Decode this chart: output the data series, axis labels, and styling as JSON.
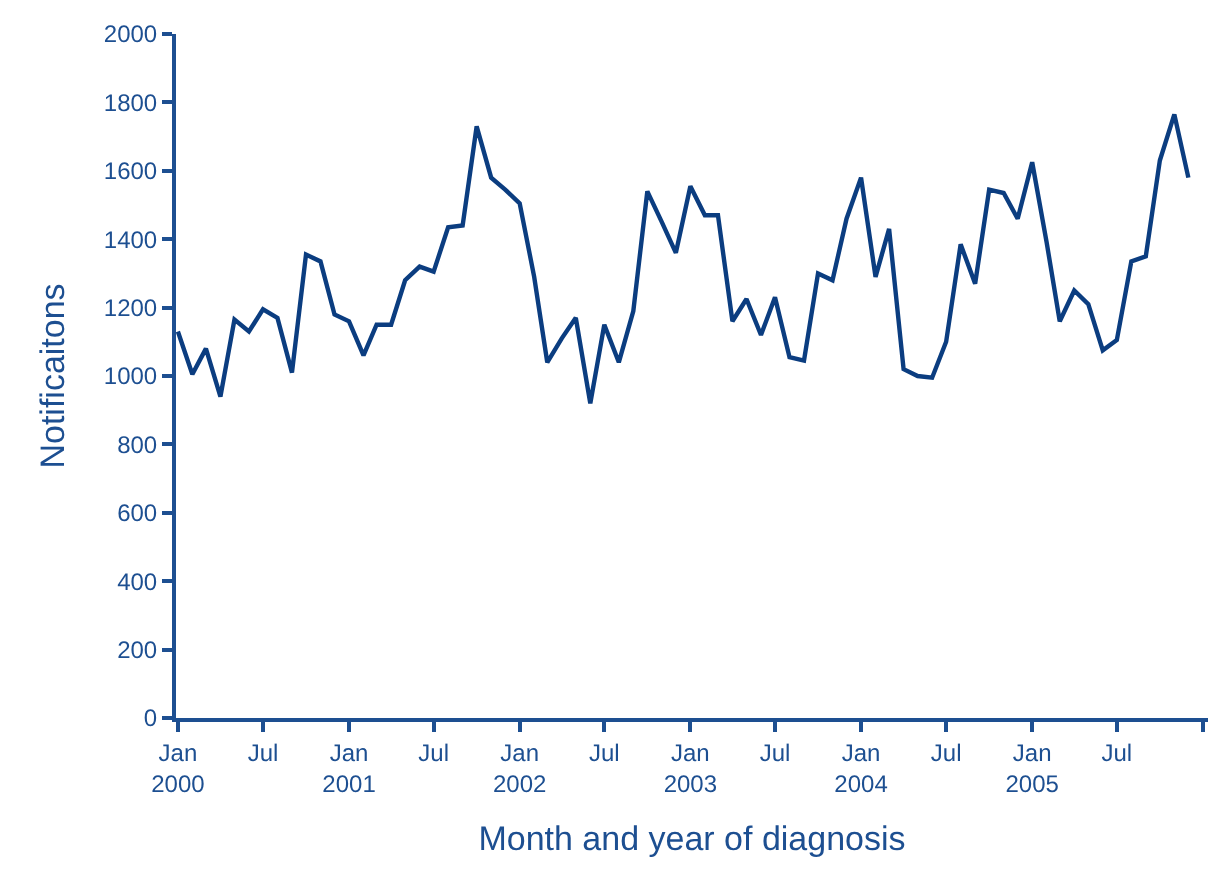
{
  "chart_data": {
    "type": "line",
    "xlabel": "Month and year of diagnosis",
    "ylabel": "Notificaitons",
    "x": [
      "2000-01",
      "2000-02",
      "2000-03",
      "2000-04",
      "2000-05",
      "2000-06",
      "2000-07",
      "2000-08",
      "2000-09",
      "2000-10",
      "2000-11",
      "2000-12",
      "2001-01",
      "2001-02",
      "2001-03",
      "2001-04",
      "2001-05",
      "2001-06",
      "2001-07",
      "2001-08",
      "2001-09",
      "2001-10",
      "2001-11",
      "2001-12",
      "2002-01",
      "2002-02",
      "2002-03",
      "2002-04",
      "2002-05",
      "2002-06",
      "2002-07",
      "2002-08",
      "2002-09",
      "2002-10",
      "2002-11",
      "2002-12",
      "2003-01",
      "2003-02",
      "2003-03",
      "2003-04",
      "2003-05",
      "2003-06",
      "2003-07",
      "2003-08",
      "2003-09",
      "2003-10",
      "2003-11",
      "2003-12",
      "2004-01",
      "2004-02",
      "2004-03",
      "2004-04",
      "2004-05",
      "2004-06",
      "2004-07",
      "2004-08",
      "2004-09",
      "2004-10",
      "2004-11",
      "2004-12",
      "2005-01",
      "2005-02",
      "2005-03",
      "2005-04",
      "2005-05",
      "2005-06",
      "2005-07",
      "2005-08",
      "2005-09",
      "2005-10",
      "2005-11",
      "2005-12"
    ],
    "series": [
      {
        "color": "#0b3d80",
        "values": [
          1130,
          1005,
          1080,
          940,
          1165,
          1130,
          1195,
          1170,
          1010,
          1355,
          1335,
          1180,
          1160,
          1060,
          1150,
          1150,
          1280,
          1320,
          1305,
          1435,
          1440,
          1730,
          1580,
          1545,
          1505,
          1290,
          1040,
          1110,
          1170,
          920,
          1150,
          1040,
          1190,
          1540,
          1450,
          1360,
          1555,
          1470,
          1470,
          1160,
          1225,
          1120,
          1230,
          1055,
          1045,
          1300,
          1280,
          1460,
          1580,
          1290,
          1430,
          1020,
          1000,
          995,
          1100,
          1385,
          1270,
          1545,
          1535,
          1460,
          1625,
          1390,
          1160,
          1250,
          1210,
          1075,
          1105,
          1335,
          1350,
          1630,
          1765,
          1580
        ]
      }
    ],
    "xlim": [
      "1999-12-28",
      "2006-01-12"
    ],
    "xticks": [
      {
        "value": "2000-01",
        "label": "Jan\n2000"
      },
      {
        "value": "2000-07",
        "label": "Jul"
      },
      {
        "value": "2001-01",
        "label": "Jan\n2001"
      },
      {
        "value": "2001-07",
        "label": "Jul"
      },
      {
        "value": "2002-01",
        "label": "Jan\n2002"
      },
      {
        "value": "2002-07",
        "label": "Jul"
      },
      {
        "value": "2003-01",
        "label": "Jan\n2003"
      },
      {
        "value": "2003-07",
        "label": "Jul"
      },
      {
        "value": "2004-01",
        "label": "Jan\n2004"
      },
      {
        "value": "2004-07",
        "label": "Jul"
      },
      {
        "value": "2005-01",
        "label": "Jan\n2005"
      },
      {
        "value": "2005-07",
        "label": "Jul"
      },
      {
        "value": "2006-01",
        "label": null
      }
    ],
    "ylim": [
      0,
      2000
    ],
    "yticks": [
      0,
      200,
      400,
      600,
      800,
      1000,
      1200,
      1400,
      1600,
      1800,
      2000
    ],
    "marker": "none",
    "line_style": "solid"
  }
}
